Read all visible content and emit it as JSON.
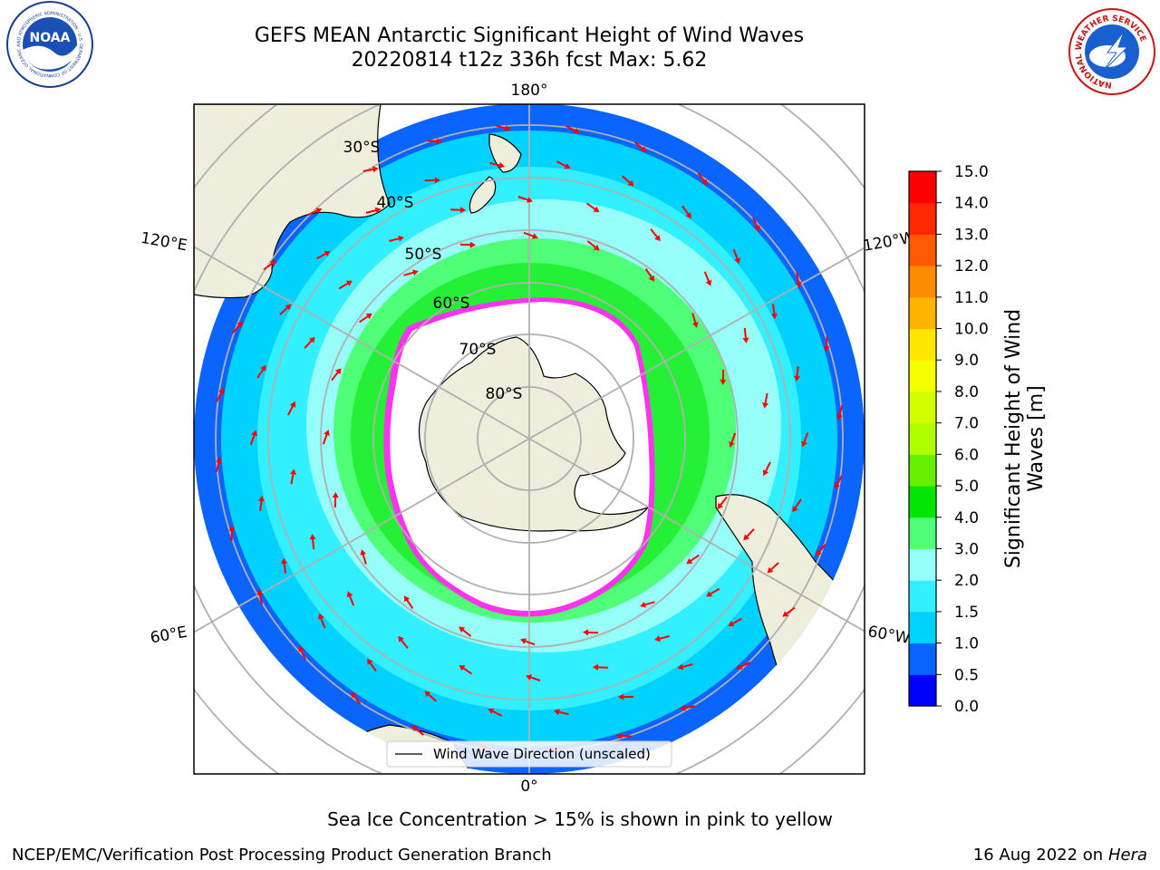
{
  "header": {
    "title_line1": "GEFS MEAN Antarctic Significant Height of Wind Waves",
    "title_line2": "20220814 t12z 336h fcst   Max: 5.62",
    "left_logo_text": "NOAA",
    "left_logo_ring_text": "NATIONAL OCEANIC AND ATMOSPHERIC ADMINISTRATION · U.S. DEPARTMENT OF COMMERCE",
    "right_logo_ring_text": "NATIONAL WEATHER SERVICE"
  },
  "map": {
    "lon_labels": {
      "top": "180°",
      "upper_left": "120°E",
      "upper_right": "120°W",
      "lower_left": "60°E",
      "lower_right": "60°W",
      "bottom": "0°"
    },
    "lat_labels": [
      "30°S",
      "40°S",
      "50°S",
      "60°S",
      "70°S",
      "80°S"
    ],
    "legend_label": "Wind Wave Direction (unscaled)"
  },
  "colorbar": {
    "label": "Significant Height of Wind Waves [m]",
    "ticks": [
      "0.0",
      "0.5",
      "1.0",
      "1.5",
      "2.0",
      "3.0",
      "4.0",
      "5.0",
      "6.0",
      "7.0",
      "8.0",
      "9.0",
      "10.0",
      "11.0",
      "12.0",
      "13.0",
      "14.0",
      "15.0"
    ],
    "colors": [
      "#0000ff",
      "#0a64ff",
      "#00d2ff",
      "#32f0ff",
      "#96fffa",
      "#50ff78",
      "#00e600",
      "#64f000",
      "#afff00",
      "#d2ff00",
      "#f5ff00",
      "#ffe600",
      "#ffb400",
      "#ff8c00",
      "#ff5a00",
      "#ff2800",
      "#ff0000"
    ]
  },
  "footer": {
    "ice_note": "Sea Ice Concentration > 15% is shown in pink to yellow",
    "org": "NCEP/EMC/Verification Post Processing Product Generation Branch",
    "date": "16 Aug 2022 on",
    "machine": "Hera"
  }
}
